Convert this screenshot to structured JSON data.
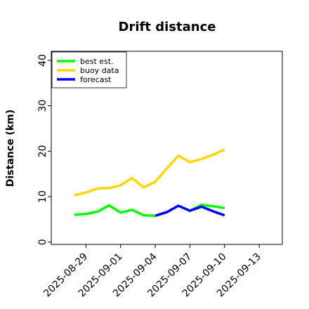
{
  "chart_data": {
    "type": "line",
    "title": "Drift distance",
    "xlabel": "",
    "ylabel": "Distance (km)",
    "ylim": [
      -0.5,
      42
    ],
    "xlim": [
      "2025-08-26",
      "2025-09-15"
    ],
    "grid": false,
    "legend_position": "top-left",
    "y_ticks": [
      0,
      10,
      20,
      30,
      40
    ],
    "x_ticks": [
      {
        "date": "2025-08-29",
        "label": "2025-08-29",
        "color": "#000000"
      },
      {
        "date": "2025-09-01",
        "label": "2025-09-01",
        "color": "#000000"
      },
      {
        "date": "2025-09-04",
        "label": "2025-09-04",
        "color": "#228b22"
      },
      {
        "date": "2025-09-07",
        "label": "2025-09-07",
        "color": "#000000"
      },
      {
        "date": "2025-09-10",
        "label": "2025-09-10",
        "color": "#000000"
      },
      {
        "date": "2025-09-13",
        "label": "2025-09-13",
        "color": "#000000"
      }
    ],
    "series": [
      {
        "name": "best est.",
        "color": "#00ff00",
        "x": [
          "2025-08-28",
          "2025-08-29",
          "2025-08-30",
          "2025-08-31",
          "2025-09-01",
          "2025-09-02",
          "2025-09-03",
          "2025-09-04",
          "2025-09-05",
          "2025-09-06",
          "2025-09-07",
          "2025-09-08",
          "2025-09-09",
          "2025-09-10"
        ],
        "values": [
          6.0,
          6.2,
          6.7,
          8.1,
          6.5,
          7.1,
          5.9,
          5.8,
          6.6,
          8.0,
          6.9,
          8.2,
          7.9,
          7.5
        ]
      },
      {
        "name": "buoy data",
        "color": "#ffd700",
        "x": [
          "2025-08-28",
          "2025-08-29",
          "2025-08-30",
          "2025-08-31",
          "2025-09-01",
          "2025-09-02",
          "2025-09-03",
          "2025-09-04",
          "2025-09-05",
          "2025-09-06",
          "2025-09-07",
          "2025-09-08",
          "2025-09-09",
          "2025-09-10"
        ],
        "values": [
          10.3,
          10.9,
          11.8,
          11.9,
          12.5,
          14.1,
          12.0,
          13.3,
          16.2,
          19.0,
          17.6,
          18.3,
          19.2,
          20.4
        ]
      },
      {
        "name": "forecast",
        "color": "#0000ff",
        "x": [
          "2025-09-04",
          "2025-09-05",
          "2025-09-06",
          "2025-09-07",
          "2025-09-08",
          "2025-09-09",
          "2025-09-10"
        ],
        "values": [
          5.8,
          6.6,
          8.0,
          6.9,
          7.8,
          6.8,
          5.9
        ]
      }
    ]
  }
}
